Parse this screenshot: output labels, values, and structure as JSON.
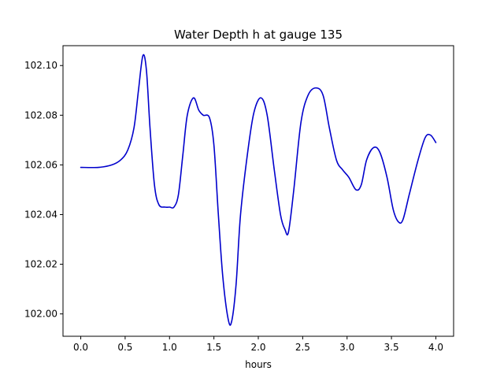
{
  "chart_data": {
    "type": "line",
    "title": "Water Depth h at gauge 135",
    "xlabel": "hours",
    "ylabel": "",
    "xlim": [
      -0.2,
      4.2
    ],
    "ylim": [
      101.991,
      102.108
    ],
    "xticks": [
      0.0,
      0.5,
      1.0,
      1.5,
      2.0,
      2.5,
      3.0,
      3.5,
      4.0
    ],
    "xtick_labels": [
      "0.0",
      "0.5",
      "1.0",
      "1.5",
      "2.0",
      "2.5",
      "3.0",
      "3.5",
      "4.0"
    ],
    "yticks": [
      102.0,
      102.02,
      102.04,
      102.06,
      102.08,
      102.1
    ],
    "ytick_labels": [
      "102.00",
      "102.02",
      "102.04",
      "102.06",
      "102.08",
      "102.10"
    ],
    "grid": false,
    "series": [
      {
        "color": "#0000cc",
        "points": [
          [
            0.0,
            102.059
          ],
          [
            0.2,
            102.059
          ],
          [
            0.35,
            102.06
          ],
          [
            0.45,
            102.062
          ],
          [
            0.53,
            102.066
          ],
          [
            0.6,
            102.075
          ],
          [
            0.65,
            102.09
          ],
          [
            0.7,
            102.104
          ],
          [
            0.74,
            102.098
          ],
          [
            0.78,
            102.075
          ],
          [
            0.83,
            102.052
          ],
          [
            0.88,
            102.044
          ],
          [
            0.95,
            102.043
          ],
          [
            1.0,
            102.043
          ],
          [
            1.05,
            102.043
          ],
          [
            1.1,
            102.048
          ],
          [
            1.15,
            102.064
          ],
          [
            1.2,
            102.08
          ],
          [
            1.27,
            102.087
          ],
          [
            1.33,
            102.082
          ],
          [
            1.38,
            102.08
          ],
          [
            1.45,
            102.079
          ],
          [
            1.5,
            102.068
          ],
          [
            1.55,
            102.04
          ],
          [
            1.6,
            102.015
          ],
          [
            1.66,
            101.998
          ],
          [
            1.7,
            101.997
          ],
          [
            1.75,
            102.012
          ],
          [
            1.8,
            102.04
          ],
          [
            1.88,
            102.065
          ],
          [
            1.95,
            102.081
          ],
          [
            2.03,
            102.087
          ],
          [
            2.1,
            102.08
          ],
          [
            2.18,
            102.058
          ],
          [
            2.25,
            102.04
          ],
          [
            2.3,
            102.034
          ],
          [
            2.34,
            102.033
          ],
          [
            2.4,
            102.05
          ],
          [
            2.48,
            102.077
          ],
          [
            2.56,
            102.088
          ],
          [
            2.65,
            102.091
          ],
          [
            2.73,
            102.088
          ],
          [
            2.8,
            102.075
          ],
          [
            2.88,
            102.062
          ],
          [
            2.95,
            102.058
          ],
          [
            3.02,
            102.055
          ],
          [
            3.1,
            102.05
          ],
          [
            3.16,
            102.052
          ],
          [
            3.22,
            102.062
          ],
          [
            3.3,
            102.067
          ],
          [
            3.37,
            102.065
          ],
          [
            3.45,
            102.055
          ],
          [
            3.52,
            102.042
          ],
          [
            3.58,
            102.037
          ],
          [
            3.63,
            102.038
          ],
          [
            3.7,
            102.048
          ],
          [
            3.8,
            102.062
          ],
          [
            3.88,
            102.071
          ],
          [
            3.94,
            102.072
          ],
          [
            4.0,
            102.069
          ]
        ]
      }
    ]
  }
}
